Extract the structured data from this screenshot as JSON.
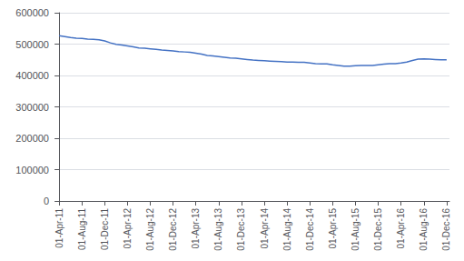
{
  "chart_data": {
    "type": "line",
    "x": [
      0,
      1,
      2,
      3,
      4,
      5,
      6,
      7,
      8,
      9,
      10,
      11,
      12,
      13,
      14,
      15,
      16,
      17,
      18,
      19,
      20,
      21,
      22,
      23,
      24,
      25,
      26,
      27,
      28,
      29,
      30,
      31,
      32,
      33,
      34,
      35,
      36,
      37,
      38,
      39,
      40,
      41,
      42,
      43,
      44,
      45,
      46,
      47,
      48,
      49,
      50,
      51,
      52,
      53,
      54,
      55,
      56,
      57,
      58,
      59,
      60,
      61,
      62,
      63,
      64,
      65,
      66,
      67,
      68
    ],
    "values": [
      527000,
      524000,
      521000,
      519000,
      518000,
      516000,
      515000,
      514000,
      510000,
      504000,
      499000,
      497000,
      494000,
      491000,
      488000,
      487000,
      485000,
      483000,
      481000,
      480000,
      478000,
      476000,
      475000,
      474000,
      471000,
      468000,
      464000,
      462000,
      460000,
      458000,
      456000,
      455000,
      453000,
      451000,
      449000,
      448000,
      447000,
      446000,
      445000,
      444000,
      443000,
      443000,
      442000,
      442000,
      440000,
      438000,
      437000,
      437000,
      434000,
      432000,
      430000,
      430000,
      431000,
      432000,
      432000,
      432000,
      434000,
      436000,
      438000,
      438000,
      440000,
      443000,
      448000,
      452000,
      453000,
      452000,
      451000,
      450000,
      450000
    ],
    "color": "#4472C4",
    "xlim": [
      -0.5,
      68.5
    ],
    "xticks": [
      {
        "value": 0,
        "label": "01-Apr-11"
      },
      {
        "value": 4,
        "label": "01-Aug-11"
      },
      {
        "value": 8,
        "label": "01-Dec-11"
      },
      {
        "value": 12,
        "label": "01-Apr-12"
      },
      {
        "value": 16,
        "label": "01-Aug-12"
      },
      {
        "value": 20,
        "label": "01-Dec-12"
      },
      {
        "value": 24,
        "label": "01-Apr-13"
      },
      {
        "value": 28,
        "label": "01-Aug-13"
      },
      {
        "value": 32,
        "label": "01-Dec-13"
      },
      {
        "value": 36,
        "label": "01-Apr-14"
      },
      {
        "value": 40,
        "label": "01-Aug-14"
      },
      {
        "value": 44,
        "label": "01-Dec-14"
      },
      {
        "value": 48,
        "label": "01-Apr-15"
      },
      {
        "value": 52,
        "label": "01-Aug-15"
      },
      {
        "value": 56,
        "label": "01-Dec-15"
      },
      {
        "value": 60,
        "label": "01-Apr-16"
      },
      {
        "value": 64,
        "label": "01-Aug-16"
      },
      {
        "value": 68,
        "label": "01-Dec-16"
      }
    ],
    "ylim": [
      0,
      600000
    ],
    "yticks": [
      0,
      100000,
      200000,
      300000,
      400000,
      500000,
      600000
    ],
    "grid": true
  }
}
